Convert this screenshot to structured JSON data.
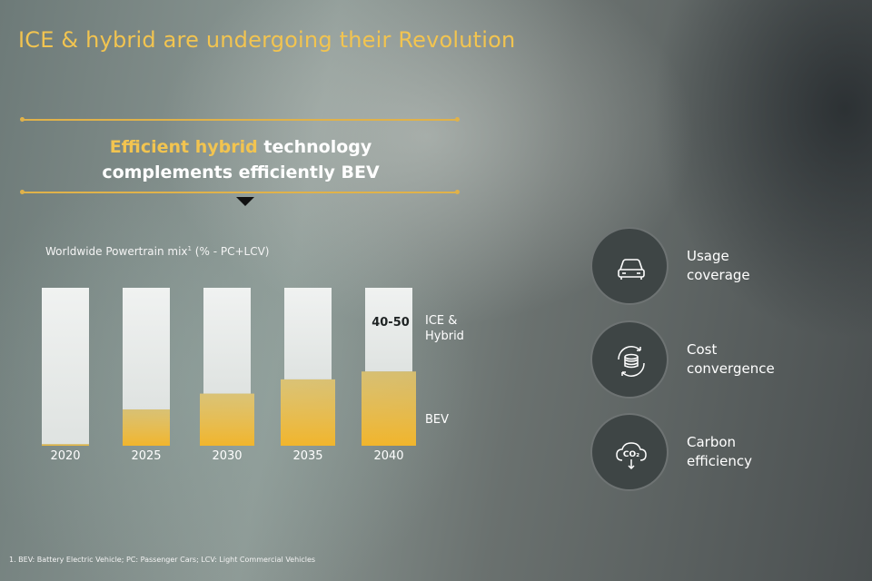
{
  "title": "ICE & hybrid are undergoing their Revolution",
  "headline": {
    "accent": "Efficient hybrid",
    "rest_line1": " technology",
    "line2": "complements efficiently BEV"
  },
  "chart_caption": {
    "text": "Worldwide Powertrain mix",
    "superscript": "1",
    "suffix": " (% -  PC+LCV)"
  },
  "chart_data": {
    "type": "bar",
    "stacked": true,
    "title": "Worldwide Powertrain mix¹ (% -  PC+LCV)",
    "categories": [
      "2020",
      "2025",
      "2030",
      "2035",
      "2040"
    ],
    "series": [
      {
        "name": "BEV",
        "values": [
          1,
          23,
          33,
          42,
          47
        ],
        "color": "#f0b73a"
      },
      {
        "name": "ICE & Hybrid",
        "values": [
          99,
          77,
          67,
          58,
          53
        ],
        "color": "#e6e9e7"
      }
    ],
    "ylim": [
      0,
      100
    ],
    "annotations": [
      {
        "category": "2040",
        "text": "40-50"
      }
    ],
    "legend": [
      "ICE &",
      "Hybrid",
      "BEV"
    ]
  },
  "features": [
    {
      "icon": "car-icon",
      "line1": "Usage",
      "line2": "coverage"
    },
    {
      "icon": "coins-cycle-icon",
      "line1": "Cost",
      "line2": "convergence"
    },
    {
      "icon": "co2-cloud-icon",
      "line1": "Carbon",
      "line2": "efficiency",
      "icon_text": "CO₂"
    }
  ],
  "footnote": "1. BEV: Battery Electric Vehicle; PC: Passenger Cars; LCV: Light Commercial Vehicles",
  "colors": {
    "accent": "#f2c450",
    "bar_bev": "#f0b73a",
    "bar_ice": "#e6e9e7"
  }
}
